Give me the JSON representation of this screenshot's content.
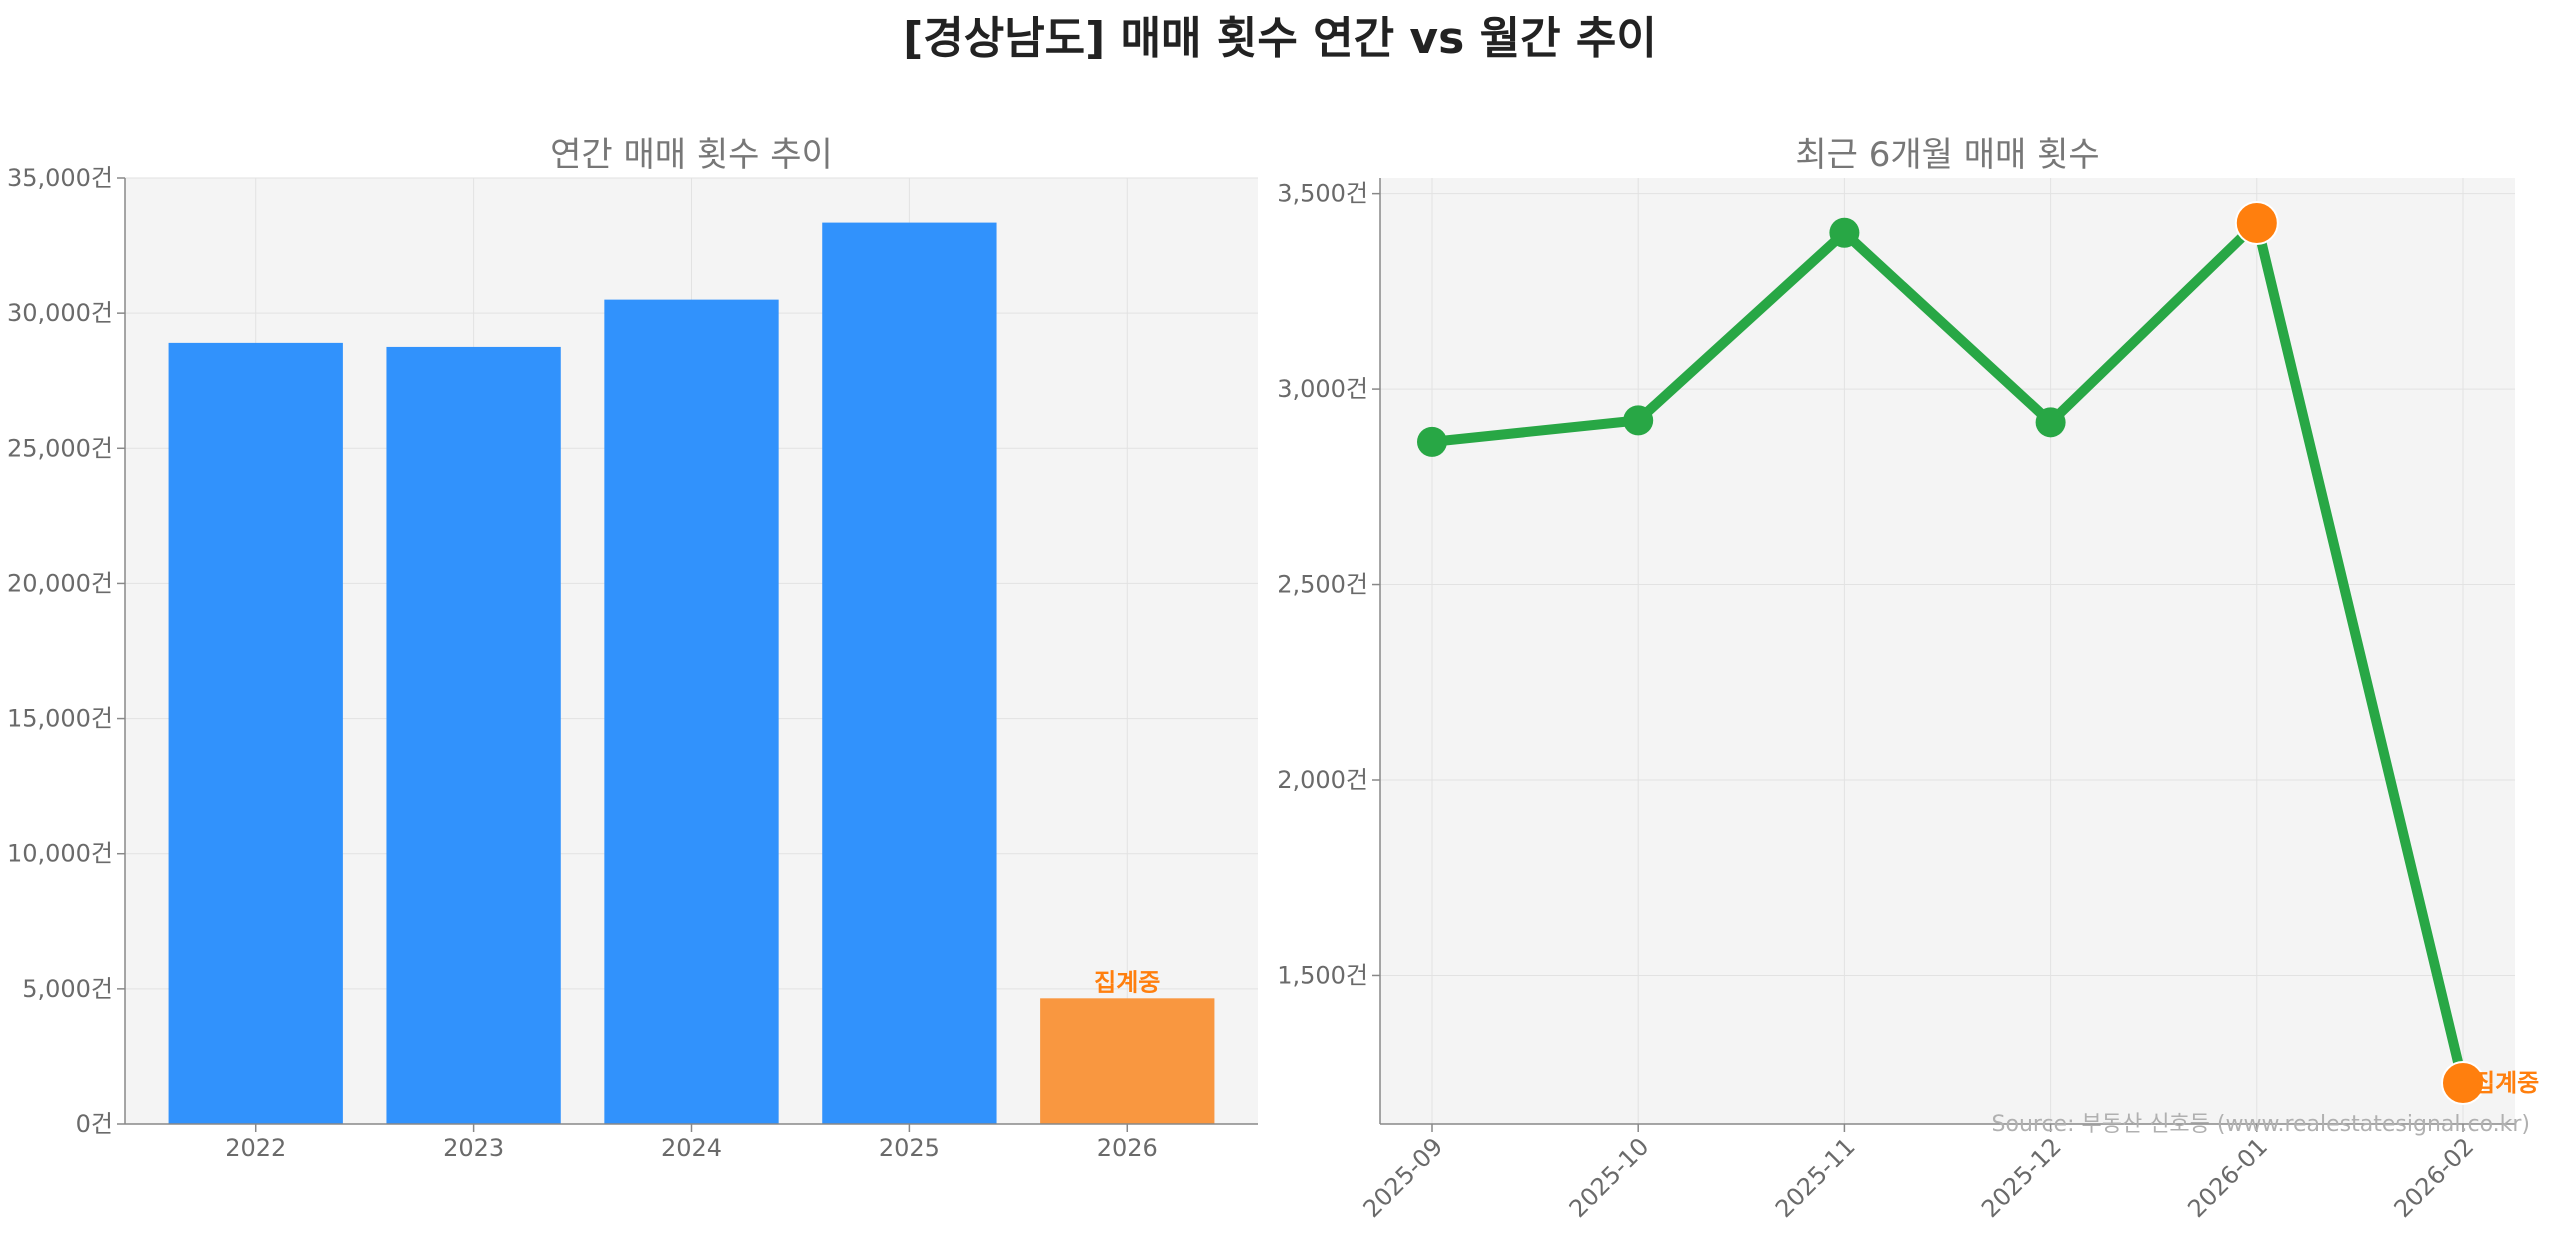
{
  "title": "[경상남도] 매매 횟수 연간 vs 월간 추이",
  "source": "Source: 부동산 신호등 (www.realestatesignal.co.kr)",
  "colors": {
    "bar": "#3192fc",
    "bar_highlight": "#f99740",
    "line": "#28a745",
    "marker_highlight": "#ff7f0e",
    "note": "#ff7f0e",
    "plot_background": "#f4f4f4"
  },
  "chart_data": [
    {
      "type": "bar",
      "title": "연간 매매 횟수 추이",
      "categories": [
        "2022",
        "2023",
        "2024",
        "2025",
        "2026"
      ],
      "values": [
        28900,
        28750,
        30500,
        33350,
        4650
      ],
      "highlight_index": 4,
      "highlight_label": "집계중",
      "ylim": [
        0,
        35000
      ],
      "yticks": [
        0,
        5000,
        10000,
        15000,
        20000,
        25000,
        30000,
        35000
      ],
      "ytick_labels": [
        "0건",
        "5,000건",
        "10,000건",
        "15,000건",
        "20,000건",
        "25,000건",
        "30,000건",
        "35,000건"
      ],
      "xlabel": "",
      "ylabel": "",
      "grid": true
    },
    {
      "type": "line",
      "title": "최근 6개월 매매 횟수",
      "x": [
        "2025-09",
        "2025-10",
        "2025-11",
        "2025-12",
        "2026-01",
        "2026-02"
      ],
      "values": [
        2865,
        2920,
        3400,
        2915,
        3425,
        1225
      ],
      "highlight_indices": [
        4,
        5
      ],
      "highlight_label": "집계중",
      "ylim": [
        1120,
        3540
      ],
      "yticks": [
        1500,
        2000,
        2500,
        3000,
        3500
      ],
      "ytick_labels": [
        "1,500건",
        "2,000건",
        "2,500건",
        "3,000건",
        "3,500건"
      ],
      "xlabel": "",
      "ylabel": "",
      "grid": true
    }
  ]
}
